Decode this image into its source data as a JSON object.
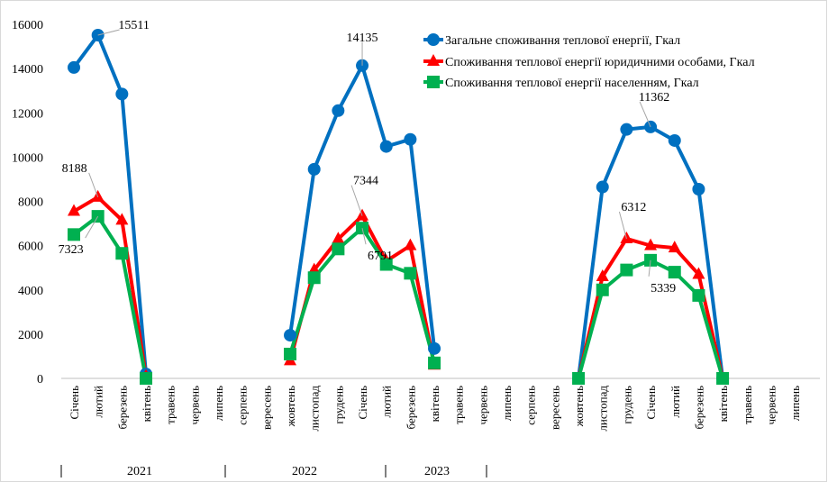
{
  "chart_data": {
    "type": "line",
    "categories": [
      "Січень",
      "лютий",
      "березень",
      "квітень",
      "травень",
      "червень",
      "липень",
      "серпень",
      "вересень",
      "жовтень",
      "листопад",
      "грудень",
      "Січень",
      "лютий",
      "березень",
      "квітень",
      "травень",
      "червень",
      "липень",
      "серпень",
      "вересень",
      "жовтень",
      "листопад",
      "грудень",
      "Січень",
      "лютий",
      "березень",
      "квітень",
      "травень",
      "червень",
      "липень"
    ],
    "x_groups": [
      "2021",
      "2022",
      "2023"
    ],
    "series": [
      {
        "name": "Загальне споживання теплової енергії, Гкал",
        "color": "#0070c0",
        "marker": "circle",
        "values": [
          14050,
          15511,
          12850,
          200,
          null,
          null,
          null,
          null,
          null,
          1950,
          9450,
          12100,
          14135,
          10480,
          10800,
          1350,
          null,
          null,
          null,
          null,
          null,
          0,
          8650,
          11250,
          11362,
          10750,
          8550,
          0,
          null,
          null,
          null
        ],
        "value_labels": [
          null,
          "15511",
          null,
          null,
          null,
          null,
          null,
          null,
          null,
          null,
          null,
          null,
          "14135",
          null,
          null,
          null,
          null,
          null,
          null,
          null,
          null,
          null,
          null,
          null,
          "11362",
          null,
          null,
          null,
          null,
          null,
          null
        ]
      },
      {
        "name": "Споживання теплової енергії юридичними особами, Гкал",
        "color": "#ff0000",
        "marker": "triangle",
        "values": [
          7550,
          8188,
          7150,
          100,
          null,
          null,
          null,
          null,
          null,
          800,
          4900,
          6300,
          7344,
          5300,
          6000,
          600,
          null,
          null,
          null,
          null,
          null,
          0,
          4600,
          6312,
          6000,
          5900,
          4700,
          0,
          null,
          null,
          null
        ],
        "value_labels": [
          null,
          "8188",
          null,
          null,
          null,
          null,
          null,
          null,
          null,
          null,
          null,
          null,
          "7344",
          null,
          null,
          null,
          null,
          null,
          null,
          null,
          null,
          null,
          null,
          "6312",
          null,
          null,
          null,
          null,
          null,
          null,
          null
        ]
      },
      {
        "name": "Споживання теплової енергії населенням, Гкал",
        "color": "#00b050",
        "marker": "square",
        "values": [
          6500,
          7323,
          5650,
          0,
          null,
          null,
          null,
          null,
          null,
          1100,
          4550,
          5850,
          6791,
          5150,
          4750,
          700,
          null,
          null,
          null,
          null,
          null,
          0,
          4000,
          4900,
          5339,
          4800,
          3750,
          0,
          null,
          null,
          null
        ],
        "value_labels": [
          null,
          "7323",
          null,
          null,
          null,
          null,
          null,
          null,
          null,
          null,
          null,
          null,
          "6791",
          null,
          null,
          null,
          null,
          null,
          null,
          null,
          null,
          null,
          null,
          null,
          "5339",
          null,
          null,
          null,
          null,
          null,
          null
        ]
      }
    ],
    "ylim": [
      0,
      16000
    ],
    "yticks": [
      0,
      2000,
      4000,
      6000,
      8000,
      10000,
      12000,
      14000,
      16000
    ],
    "grid": false,
    "legend": "top-right"
  }
}
